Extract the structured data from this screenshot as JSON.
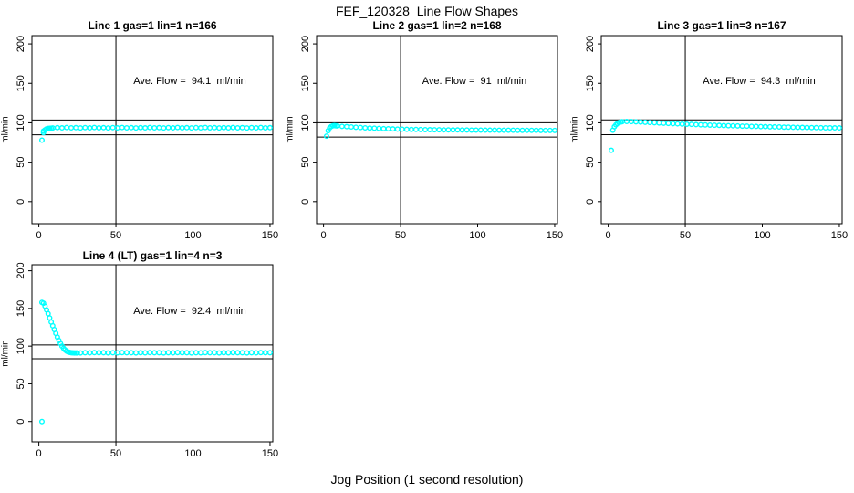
{
  "title": "FEF_120328  Line Flow Shapes",
  "xlabel": "Jog Position (1 second resolution)",
  "ylabel": "ml/min",
  "colors": {
    "points": "#00ffff",
    "axis": "#000000",
    "background": "#ffffff"
  },
  "chart_data": [
    {
      "type": "scatter",
      "title": "Line 1 gas=1 lin=1 n=166",
      "annotation": "Ave. Flow =  94.1  ml/min",
      "ave_flow_ml_min": 94.1,
      "n": 166,
      "xticks": [
        0,
        50,
        100,
        150
      ],
      "yticks": [
        0,
        50,
        100,
        150,
        200
      ],
      "vline_x": 50,
      "hlines": [
        103.5,
        84.7
      ],
      "points": [
        [
          2,
          78
        ],
        [
          3,
          87.5
        ],
        [
          3,
          89.5
        ],
        [
          4,
          91
        ],
        [
          5,
          92.2
        ],
        [
          6,
          92.8
        ],
        [
          7,
          93
        ],
        [
          8,
          93.2
        ],
        [
          9,
          93.4
        ],
        [
          12,
          93.9
        ],
        [
          15,
          93.5
        ],
        [
          18,
          94.0
        ],
        [
          21,
          93.6
        ],
        [
          24,
          93.8
        ],
        [
          27,
          93.4
        ],
        [
          30,
          93.9
        ],
        [
          33,
          93.5
        ],
        [
          36,
          94.0
        ],
        [
          39,
          93.6
        ],
        [
          42,
          93.8
        ],
        [
          45,
          93.4
        ],
        [
          48,
          93.9
        ],
        [
          51,
          93.5
        ],
        [
          54,
          94.0
        ],
        [
          57,
          93.6
        ],
        [
          60,
          93.8
        ],
        [
          63,
          93.4
        ],
        [
          66,
          93.9
        ],
        [
          69,
          93.5
        ],
        [
          72,
          94.0
        ],
        [
          75,
          93.6
        ],
        [
          78,
          93.8
        ],
        [
          81,
          93.4
        ],
        [
          84,
          93.9
        ],
        [
          87,
          93.5
        ],
        [
          90,
          94.0
        ],
        [
          93,
          93.6
        ],
        [
          96,
          93.8
        ],
        [
          99,
          93.4
        ],
        [
          102,
          93.9
        ],
        [
          105,
          93.5
        ],
        [
          108,
          94.0
        ],
        [
          111,
          93.6
        ],
        [
          114,
          93.8
        ],
        [
          117,
          93.4
        ],
        [
          120,
          93.9
        ],
        [
          123,
          93.5
        ],
        [
          126,
          94.0
        ],
        [
          129,
          93.6
        ],
        [
          132,
          93.8
        ],
        [
          135,
          93.4
        ],
        [
          138,
          93.9
        ],
        [
          141,
          93.5
        ],
        [
          144,
          94.0
        ],
        [
          147,
          93.6
        ],
        [
          150,
          93.8
        ]
      ]
    },
    {
      "type": "scatter",
      "title": "Line 2 gas=1 lin=2 n=168",
      "annotation": "Ave. Flow =  91  ml/min",
      "ave_flow_ml_min": 91,
      "n": 168,
      "xticks": [
        0,
        50,
        100,
        150
      ],
      "yticks": [
        0,
        50,
        100,
        150,
        200
      ],
      "vline_x": 50,
      "hlines": [
        100.1,
        81.9
      ],
      "points": [
        [
          2,
          83
        ],
        [
          3,
          90
        ],
        [
          4,
          93.5
        ],
        [
          5,
          95.3
        ],
        [
          6,
          96.2
        ],
        [
          7,
          96.4
        ],
        [
          8,
          96.2
        ],
        [
          9,
          96.0
        ],
        [
          12,
          95.5
        ],
        [
          15,
          95.1
        ],
        [
          18,
          94.7
        ],
        [
          21,
          94.3
        ],
        [
          24,
          94.0
        ],
        [
          27,
          93.6
        ],
        [
          30,
          93.3
        ],
        [
          33,
          93.1
        ],
        [
          36,
          92.8
        ],
        [
          39,
          92.6
        ],
        [
          42,
          92.4
        ],
        [
          45,
          92.2
        ],
        [
          48,
          92.0
        ],
        [
          51,
          91.9
        ],
        [
          54,
          91.7
        ],
        [
          57,
          91.6
        ],
        [
          60,
          91.5
        ],
        [
          63,
          91.4
        ],
        [
          66,
          91.3
        ],
        [
          69,
          91.2
        ],
        [
          72,
          91.1
        ],
        [
          75,
          91.1
        ],
        [
          78,
          91.0
        ],
        [
          81,
          91.0
        ],
        [
          84,
          90.9
        ],
        [
          87,
          90.9
        ],
        [
          90,
          90.8
        ],
        [
          93,
          90.8
        ],
        [
          96,
          90.7
        ],
        [
          99,
          90.7
        ],
        [
          102,
          90.7
        ],
        [
          105,
          90.6
        ],
        [
          108,
          90.6
        ],
        [
          111,
          90.6
        ],
        [
          114,
          90.5
        ],
        [
          117,
          90.5
        ],
        [
          120,
          90.5
        ],
        [
          123,
          90.5
        ],
        [
          126,
          90.4
        ],
        [
          129,
          90.4
        ],
        [
          132,
          90.4
        ],
        [
          135,
          90.4
        ],
        [
          138,
          90.4
        ],
        [
          141,
          90.3
        ],
        [
          144,
          90.3
        ],
        [
          147,
          90.3
        ],
        [
          150,
          90.3
        ]
      ]
    },
    {
      "type": "scatter",
      "title": "Line 3 gas=1 lin=3 n=167",
      "annotation": "Ave. Flow =  94.3  ml/min",
      "ave_flow_ml_min": 94.3,
      "n": 167,
      "xticks": [
        0,
        50,
        100,
        150
      ],
      "yticks": [
        0,
        50,
        100,
        150,
        200
      ],
      "vline_x": 50,
      "hlines": [
        103.7,
        84.9
      ],
      "points": [
        [
          2,
          65
        ],
        [
          3,
          90.5
        ],
        [
          4,
          95
        ],
        [
          5,
          97.5
        ],
        [
          6,
          99.2
        ],
        [
          7,
          100.3
        ],
        [
          8,
          101
        ],
        [
          9,
          101.4
        ],
        [
          12,
          101.6
        ],
        [
          15,
          101.5
        ],
        [
          18,
          101.3
        ],
        [
          21,
          101.0
        ],
        [
          24,
          100.7
        ],
        [
          27,
          100.4
        ],
        [
          30,
          100.1
        ],
        [
          33,
          99.8
        ],
        [
          36,
          99.5
        ],
        [
          39,
          99.2
        ],
        [
          42,
          98.9
        ],
        [
          45,
          98.7
        ],
        [
          48,
          98.4
        ],
        [
          51,
          98.2
        ],
        [
          54,
          98.0
        ],
        [
          57,
          97.7
        ],
        [
          60,
          97.5
        ],
        [
          63,
          97.3
        ],
        [
          66,
          97.1
        ],
        [
          69,
          96.9
        ],
        [
          72,
          96.7
        ],
        [
          75,
          96.5
        ],
        [
          78,
          96.3
        ],
        [
          81,
          96.2
        ],
        [
          84,
          96.0
        ],
        [
          87,
          95.8
        ],
        [
          90,
          95.7
        ],
        [
          93,
          95.5
        ],
        [
          96,
          95.4
        ],
        [
          99,
          95.2
        ],
        [
          102,
          95.1
        ],
        [
          105,
          94.9
        ],
        [
          108,
          94.8
        ],
        [
          111,
          94.7
        ],
        [
          114,
          94.5
        ],
        [
          117,
          94.4
        ],
        [
          120,
          94.3
        ],
        [
          123,
          94.2
        ],
        [
          126,
          94.1
        ],
        [
          129,
          94.0
        ],
        [
          132,
          93.9
        ],
        [
          135,
          93.8
        ],
        [
          138,
          93.7
        ],
        [
          141,
          93.6
        ],
        [
          144,
          93.6
        ],
        [
          147,
          93.5
        ],
        [
          150,
          93.5
        ]
      ]
    },
    {
      "type": "scatter",
      "title": "Line 4 (LT) gas=1 lin=4 n=3",
      "annotation": "Ave. Flow =  92.4  ml/min",
      "ave_flow_ml_min": 92.4,
      "n": 3,
      "xticks": [
        0,
        50,
        100,
        150
      ],
      "yticks": [
        0,
        50,
        100,
        150,
        200
      ],
      "vline_x": 50,
      "hlines": [
        101.6,
        83.2
      ],
      "points": [
        [
          2,
          0
        ],
        [
          2,
          158
        ],
        [
          3,
          157
        ],
        [
          4,
          153
        ],
        [
          5,
          148
        ],
        [
          6,
          143
        ],
        [
          7,
          137.5
        ],
        [
          8,
          132
        ],
        [
          9,
          127
        ],
        [
          10,
          122
        ],
        [
          11,
          117
        ],
        [
          12,
          112
        ],
        [
          13,
          107.5
        ],
        [
          14,
          103.5
        ],
        [
          15,
          100
        ],
        [
          16,
          97.2
        ],
        [
          17,
          95
        ],
        [
          18,
          93.3
        ],
        [
          19,
          92.3
        ],
        [
          20,
          91.7
        ],
        [
          21,
          91.3
        ],
        [
          22,
          91.1
        ],
        [
          23,
          91.0
        ],
        [
          24,
          90.9
        ],
        [
          25,
          90.9
        ],
        [
          27,
          91.0
        ],
        [
          30,
          91.3
        ],
        [
          33,
          91.1
        ],
        [
          36,
          91.4
        ],
        [
          39,
          91.2
        ],
        [
          42,
          91.3
        ],
        [
          45,
          91.0
        ],
        [
          48,
          91.3
        ],
        [
          51,
          91.1
        ],
        [
          54,
          91.4
        ],
        [
          57,
          91.2
        ],
        [
          60,
          91.3
        ],
        [
          63,
          91.0
        ],
        [
          66,
          91.3
        ],
        [
          69,
          91.1
        ],
        [
          72,
          91.4
        ],
        [
          75,
          91.2
        ],
        [
          78,
          91.3
        ],
        [
          81,
          91.0
        ],
        [
          84,
          91.3
        ],
        [
          87,
          91.1
        ],
        [
          90,
          91.4
        ],
        [
          93,
          91.2
        ],
        [
          96,
          91.3
        ],
        [
          99,
          91.0
        ],
        [
          102,
          91.3
        ],
        [
          105,
          91.1
        ],
        [
          108,
          91.4
        ],
        [
          111,
          91.2
        ],
        [
          114,
          91.3
        ],
        [
          117,
          91.0
        ],
        [
          120,
          91.3
        ],
        [
          123,
          91.1
        ],
        [
          126,
          91.4
        ],
        [
          129,
          91.2
        ],
        [
          132,
          91.3
        ],
        [
          135,
          91.0
        ],
        [
          138,
          91.3
        ],
        [
          141,
          91.1
        ],
        [
          144,
          91.4
        ],
        [
          147,
          91.2
        ],
        [
          150,
          91.3
        ]
      ]
    }
  ]
}
